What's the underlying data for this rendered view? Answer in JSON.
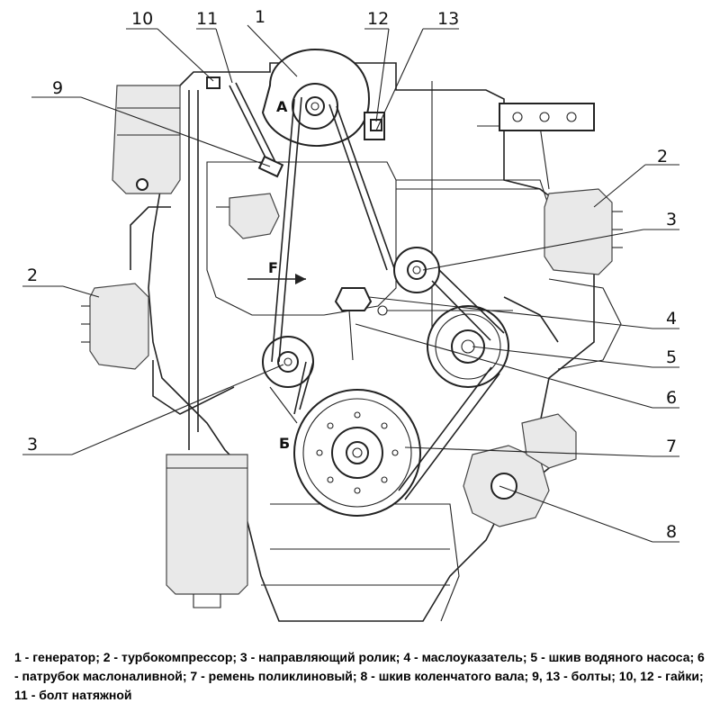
{
  "diagram": {
    "callouts": [
      {
        "number": "1",
        "id": "generator"
      },
      {
        "number": "2",
        "id": "turbocharger"
      },
      {
        "number": "3",
        "id": "guide-roller"
      },
      {
        "number": "4",
        "id": "dipstick"
      },
      {
        "number": "5",
        "id": "water-pump-pulley"
      },
      {
        "number": "6",
        "id": "oil-filler-neck"
      },
      {
        "number": "7",
        "id": "poly-v-belt"
      },
      {
        "number": "8",
        "id": "crankshaft-pulley"
      },
      {
        "number": "9",
        "id": "bolt"
      },
      {
        "number": "10",
        "id": "nut"
      },
      {
        "number": "11",
        "id": "tension-bolt"
      },
      {
        "number": "12",
        "id": "nut"
      },
      {
        "number": "13",
        "id": "bolt"
      }
    ],
    "point_labels": {
      "a": "А",
      "b": "Б",
      "f": "F"
    }
  },
  "caption": "1 - генератор; 2 - турбокомпрессор; 3 - направляющий ролик; 4 - маслоуказатель; 5 - шкив водяного насоса; 6 - патрубок маслоналивной; 7 - ремень поликлиновый; 8 - шкив коленчатого вала; 9, 13 - болты; 10, 12 - гайки; 11 - болт натяжной"
}
